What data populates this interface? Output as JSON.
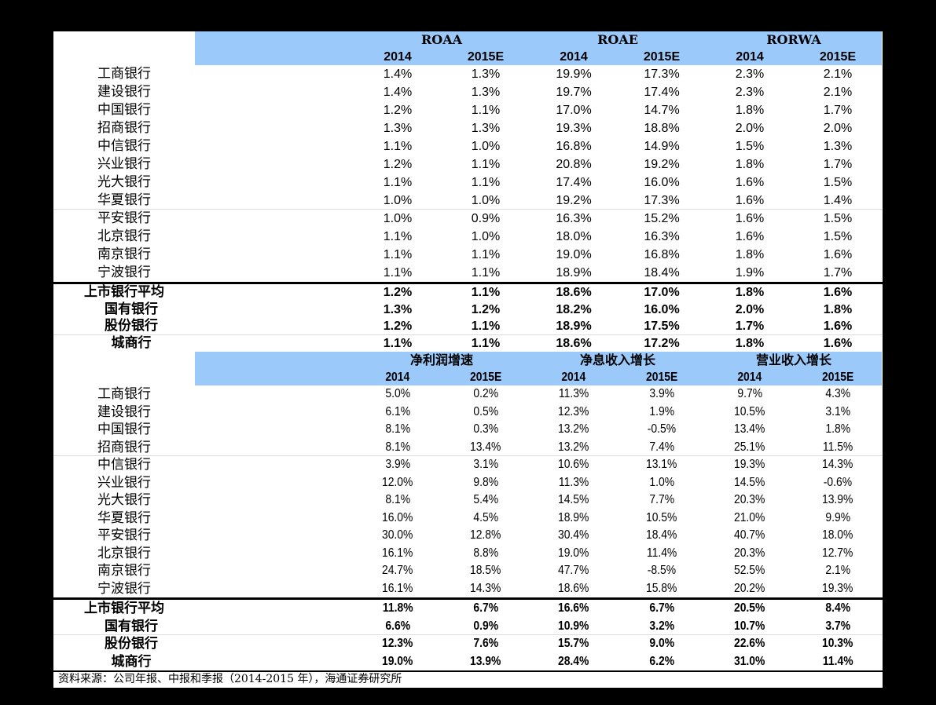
{
  "colors": {
    "page_bg": "#000000",
    "panel_bg": "#FFFFFF",
    "header_bg": "#9AC9FA",
    "text": "#000000"
  },
  "sections": [
    {
      "groups": [
        "ROAA",
        "ROAE",
        "RORWA"
      ],
      "years": [
        "2014",
        "2015E",
        "2014",
        "2015E",
        "2014",
        "2015E"
      ],
      "rows": [
        {
          "name": "工商银行",
          "values": [
            "1.4%",
            "1.3%",
            "19.9%",
            "17.3%",
            "2.3%",
            "2.1%"
          ]
        },
        {
          "name": "建设银行",
          "values": [
            "1.4%",
            "1.3%",
            "19.7%",
            "17.4%",
            "2.3%",
            "2.1%"
          ]
        },
        {
          "name": "中国银行",
          "values": [
            "1.2%",
            "1.1%",
            "17.0%",
            "14.7%",
            "1.8%",
            "1.7%"
          ]
        },
        {
          "name": "招商银行",
          "values": [
            "1.3%",
            "1.3%",
            "19.3%",
            "18.8%",
            "2.0%",
            "2.0%"
          ]
        },
        {
          "name": "中信银行",
          "values": [
            "1.1%",
            "1.0%",
            "16.8%",
            "14.9%",
            "1.5%",
            "1.3%"
          ]
        },
        {
          "name": "兴业银行",
          "values": [
            "1.2%",
            "1.1%",
            "20.8%",
            "19.2%",
            "1.8%",
            "1.7%"
          ]
        },
        {
          "name": "光大银行",
          "values": [
            "1.1%",
            "1.1%",
            "17.4%",
            "16.0%",
            "1.6%",
            "1.5%"
          ]
        },
        {
          "name": "华夏银行",
          "values": [
            "1.0%",
            "1.0%",
            "19.2%",
            "17.3%",
            "1.6%",
            "1.4%"
          ]
        },
        {
          "name": "平安银行",
          "values": [
            "1.0%",
            "0.9%",
            "16.3%",
            "15.2%",
            "1.6%",
            "1.5%"
          ]
        },
        {
          "name": "北京银行",
          "values": [
            "1.1%",
            "1.0%",
            "18.0%",
            "16.3%",
            "1.6%",
            "1.5%"
          ]
        },
        {
          "name": "南京银行",
          "values": [
            "1.1%",
            "1.1%",
            "19.0%",
            "16.8%",
            "1.8%",
            "1.6%"
          ]
        },
        {
          "name": "宁波银行",
          "values": [
            "1.1%",
            "1.1%",
            "18.9%",
            "18.4%",
            "1.9%",
            "1.7%"
          ]
        }
      ],
      "summary": [
        {
          "name": "上市银行平均",
          "values": [
            "1.2%",
            "1.1%",
            "18.6%",
            "17.0%",
            "1.8%",
            "1.6%"
          ]
        },
        {
          "name": "国有银行",
          "values": [
            "1.3%",
            "1.2%",
            "18.2%",
            "16.0%",
            "2.0%",
            "1.8%"
          ]
        },
        {
          "name": "股份银行",
          "values": [
            "1.2%",
            "1.1%",
            "18.9%",
            "17.5%",
            "1.7%",
            "1.6%"
          ]
        },
        {
          "name": "城商行",
          "values": [
            "1.1%",
            "1.1%",
            "18.6%",
            "17.2%",
            "1.8%",
            "1.6%"
          ]
        }
      ]
    },
    {
      "groups": [
        "净利润增速",
        "净息收入增长",
        "营业收入增长"
      ],
      "years": [
        "2014",
        "2015E",
        "2014",
        "2015E",
        "2014",
        "2015E"
      ],
      "rows": [
        {
          "name": "工商银行",
          "values": [
            "5.0%",
            "0.2%",
            "11.3%",
            "3.9%",
            "9.7%",
            "4.3%"
          ]
        },
        {
          "name": "建设银行",
          "values": [
            "6.1%",
            "0.5%",
            "12.3%",
            "1.9%",
            "10.5%",
            "3.1%"
          ]
        },
        {
          "name": "中国银行",
          "values": [
            "8.1%",
            "0.3%",
            "13.2%",
            "-0.5%",
            "13.4%",
            "1.8%"
          ]
        },
        {
          "name": "招商银行",
          "values": [
            "8.1%",
            "13.4%",
            "13.2%",
            "7.4%",
            "25.1%",
            "11.5%"
          ]
        },
        {
          "name": "中信银行",
          "values": [
            "3.9%",
            "3.1%",
            "10.6%",
            "13.1%",
            "19.3%",
            "14.3%"
          ]
        },
        {
          "name": "兴业银行",
          "values": [
            "12.0%",
            "9.8%",
            "11.3%",
            "1.0%",
            "14.5%",
            "-0.6%"
          ]
        },
        {
          "name": "光大银行",
          "values": [
            "8.1%",
            "5.4%",
            "14.5%",
            "7.7%",
            "20.3%",
            "13.9%"
          ]
        },
        {
          "name": "华夏银行",
          "values": [
            "16.0%",
            "4.5%",
            "18.9%",
            "10.5%",
            "21.0%",
            "9.9%"
          ]
        },
        {
          "name": "平安银行",
          "values": [
            "30.0%",
            "12.8%",
            "30.4%",
            "18.4%",
            "40.7%",
            "18.0%"
          ]
        },
        {
          "name": "北京银行",
          "values": [
            "16.1%",
            "8.8%",
            "19.0%",
            "11.4%",
            "20.3%",
            "12.7%"
          ]
        },
        {
          "name": "南京银行",
          "values": [
            "24.7%",
            "18.5%",
            "47.7%",
            "-8.5%",
            "52.5%",
            "2.1%"
          ]
        },
        {
          "name": "宁波银行",
          "values": [
            "16.1%",
            "14.3%",
            "18.6%",
            "15.8%",
            "20.2%",
            "19.3%"
          ]
        }
      ],
      "summary": [
        {
          "name": "上市银行平均",
          "values": [
            "11.8%",
            "6.7%",
            "16.6%",
            "6.7%",
            "20.5%",
            "8.4%"
          ]
        },
        {
          "name": "国有银行",
          "values": [
            "6.6%",
            "0.9%",
            "10.9%",
            "3.2%",
            "10.7%",
            "3.7%"
          ]
        },
        {
          "name": "股份银行",
          "values": [
            "12.3%",
            "7.6%",
            "15.7%",
            "9.0%",
            "22.6%",
            "10.3%"
          ]
        },
        {
          "name": "城商行",
          "values": [
            "19.0%",
            "13.9%",
            "28.4%",
            "6.2%",
            "31.0%",
            "11.4%"
          ]
        }
      ]
    }
  ],
  "footer": {
    "source": "资料来源：公司年报、中报和季报（2014-2015 年），海通证券研究所"
  }
}
